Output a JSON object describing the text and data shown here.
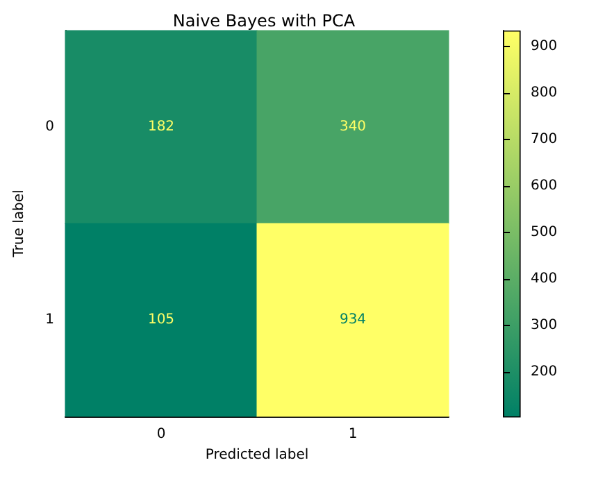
{
  "chart_data": {
    "type": "heatmap",
    "title": "Naive Bayes with PCA",
    "xlabel": "Predicted label",
    "ylabel": "True label",
    "categories": [
      "0",
      "1"
    ],
    "y_categories": [
      "0",
      "1"
    ],
    "cells": [
      [
        182,
        340
      ],
      [
        105,
        934
      ]
    ],
    "clim": [
      105,
      934
    ],
    "cticks": [
      200,
      300,
      400,
      500,
      600,
      700,
      800,
      900
    ],
    "data_labels": true
  }
}
